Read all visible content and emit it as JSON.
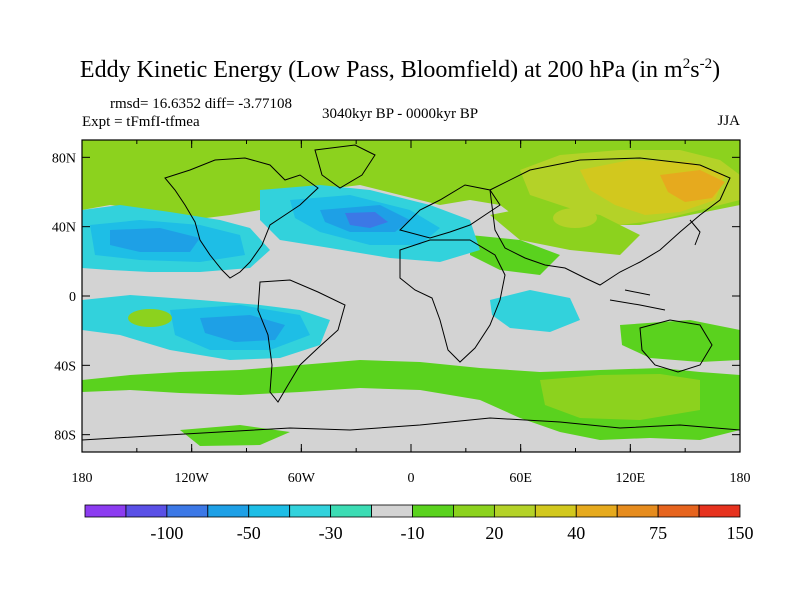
{
  "title": {
    "main": "Eddy Kinetic Energy (Low Pass, Bloomfield) at 200 hPa (in m",
    "exp1": "2",
    "mid": "s",
    "exp2": "-2",
    "end": ")"
  },
  "stats": "rmsd= 16.6352 diff= -3.77108",
  "expt": "Expt = tFmfI-tfmea",
  "period": "3040kyr BP - 0000kyr BP",
  "season": "JJA",
  "map": {
    "lon_labels": [
      "180",
      "120W",
      "60W",
      "0",
      "60E",
      "120E",
      "180"
    ],
    "lat_labels": [
      "80N",
      "40N",
      "0",
      "40S",
      "80S"
    ],
    "background_color": "#d3d3d3"
  },
  "colorbar": {
    "colors": [
      "#8c3cf0",
      "#5a50e6",
      "#3c78e6",
      "#1ea0e6",
      "#1ebee6",
      "#32d2dc",
      "#3cdcb4",
      "#d3d3d3",
      "#5ad21e",
      "#8cd21e",
      "#b4d228",
      "#d2c81e",
      "#e6aa1e",
      "#e68c1e",
      "#e6641e",
      "#e6321e"
    ],
    "labels": [
      "-100",
      "-50",
      "-30",
      "-10",
      "20",
      "40",
      "75",
      "150"
    ]
  }
}
